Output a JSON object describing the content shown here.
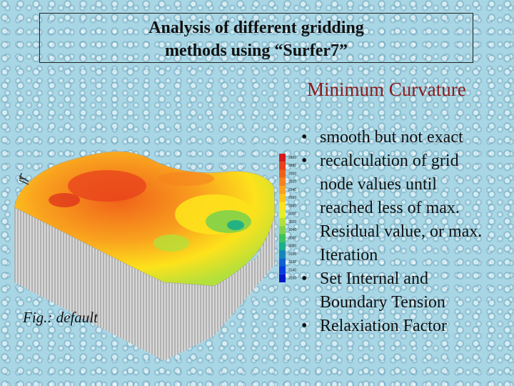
{
  "slide": {
    "title_lines": [
      "Analysis of different gridding",
      "methods using “Surfer7”"
    ],
    "subtitle": "Minimum Curvature",
    "caption": "Fig.: default",
    "bullets": [
      "smooth but not exact",
      "recalculation of grid node values until reached less of max. Residual value, or max. Iteration",
      "Set Internal and Boundary Tension",
      "Relaxiation Factor"
    ],
    "legend": [
      {
        "label": 2860,
        "color": "#d7191c"
      },
      {
        "label": 2880,
        "color": "#e8401c"
      },
      {
        "label": 2900,
        "color": "#f0601a"
      },
      {
        "label": 2920,
        "color": "#f58220"
      },
      {
        "label": 2940,
        "color": "#f9a21e"
      },
      {
        "label": 2960,
        "color": "#fbc21c"
      },
      {
        "label": 2980,
        "color": "#fde21c"
      },
      {
        "label": 3000,
        "color": "#e4ee2a"
      },
      {
        "label": 3020,
        "color": "#b4e03a"
      },
      {
        "label": 3040,
        "color": "#7fd24a"
      },
      {
        "label": 3060,
        "color": "#3cc45a"
      },
      {
        "label": 3080,
        "color": "#1aae8a"
      },
      {
        "label": 3100,
        "color": "#1486b8"
      },
      {
        "label": 3120,
        "color": "#1060d0"
      },
      {
        "label": 3140,
        "color": "#0a3ae0"
      },
      {
        "label": 3160,
        "color": "#0618c8"
      }
    ]
  }
}
